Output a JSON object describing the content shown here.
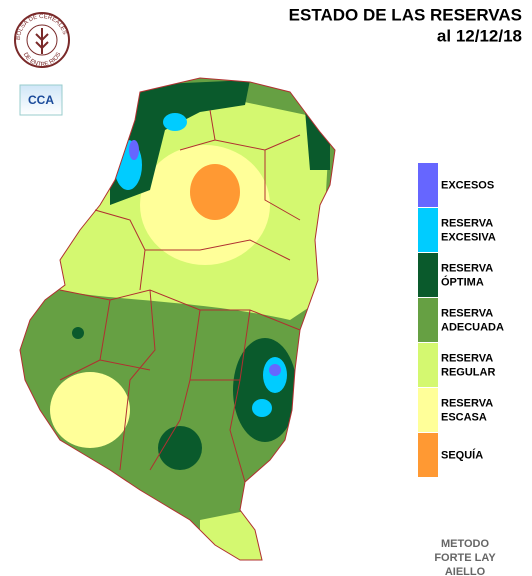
{
  "header": {
    "title": "ESTADO DE LAS RESERVAS",
    "date": "al 12/12/18"
  },
  "logo": {
    "top": "BOLSA DE CEREALES",
    "bottom": "DE ENTRE RIOS",
    "badge": "CCA"
  },
  "legend": [
    {
      "lines": [
        "EXCESOS"
      ],
      "color": "#6666ff"
    },
    {
      "lines": [
        "RESERVA",
        "EXCESIVA"
      ],
      "color": "#00ccff"
    },
    {
      "lines": [
        "RESERVA",
        "ÓPTIMA"
      ],
      "color": "#0a5a2c"
    },
    {
      "lines": [
        "RESERVA",
        "ADECUADA"
      ],
      "color": "#66a043"
    },
    {
      "lines": [
        "RESERVA",
        "REGULAR"
      ],
      "color": "#d4f870"
    },
    {
      "lines": [
        "RESERVA",
        "ESCASA"
      ],
      "color": "#ffff99"
    },
    {
      "lines": [
        "SEQUÍA"
      ],
      "color": "#ff9933"
    }
  ],
  "method": [
    "METODO",
    "FORTE LAY",
    "AIELLO"
  ]
}
